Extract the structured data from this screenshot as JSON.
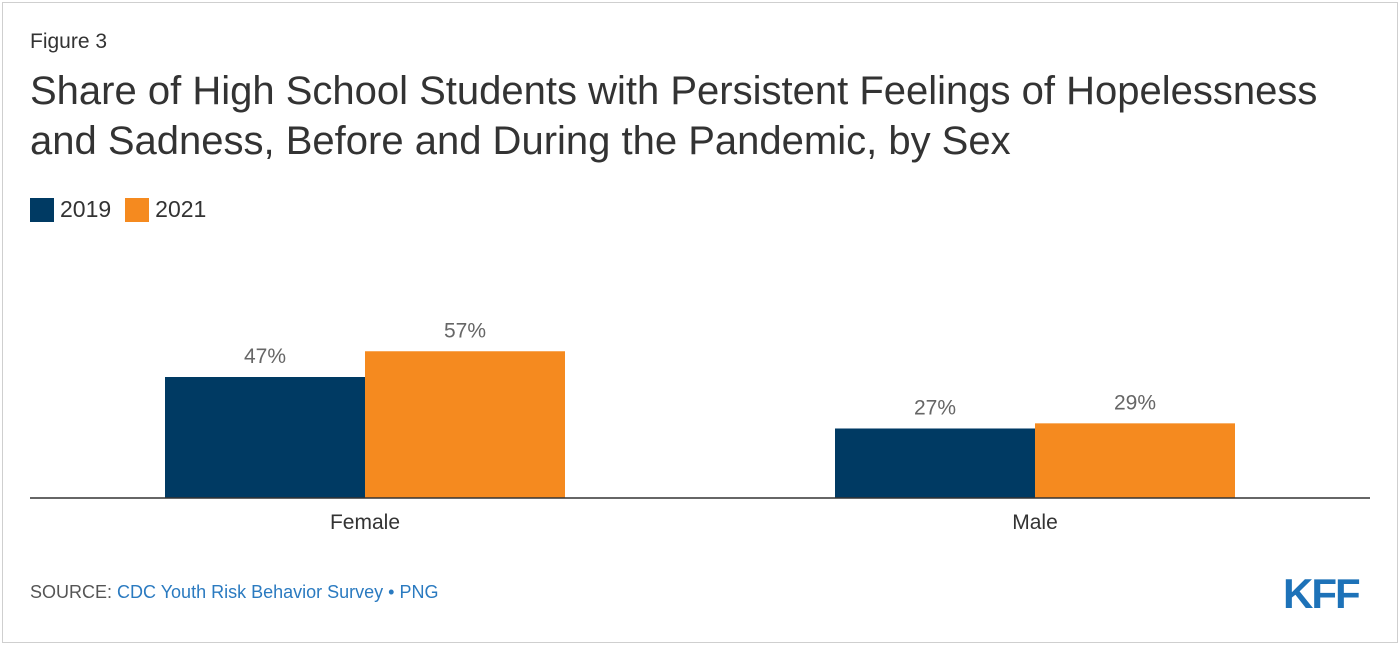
{
  "figure_label": "Figure 3",
  "title": "Share of High School Students with Persistent Feelings of Hopelessness and Sadness, Before and During the Pandemic, by Sex",
  "source": {
    "prefix": "SOURCE: ",
    "link": "CDC Youth Risk Behavior Survey",
    "separator": " • ",
    "format": "PNG"
  },
  "logo_text": "KFF",
  "chart_data": {
    "type": "bar",
    "categories": [
      "Female",
      "Male"
    ],
    "series": [
      {
        "name": "2019",
        "values": [
          47,
          27
        ],
        "labels": [
          "47%",
          "27%"
        ],
        "color": "#003a63"
      },
      {
        "name": "2021",
        "values": [
          57,
          29
        ],
        "labels": [
          "57%",
          "29%"
        ],
        "color": "#f58a1f"
      }
    ],
    "ylim": [
      0,
      80
    ],
    "legend_position": "top-left",
    "grid": false
  }
}
